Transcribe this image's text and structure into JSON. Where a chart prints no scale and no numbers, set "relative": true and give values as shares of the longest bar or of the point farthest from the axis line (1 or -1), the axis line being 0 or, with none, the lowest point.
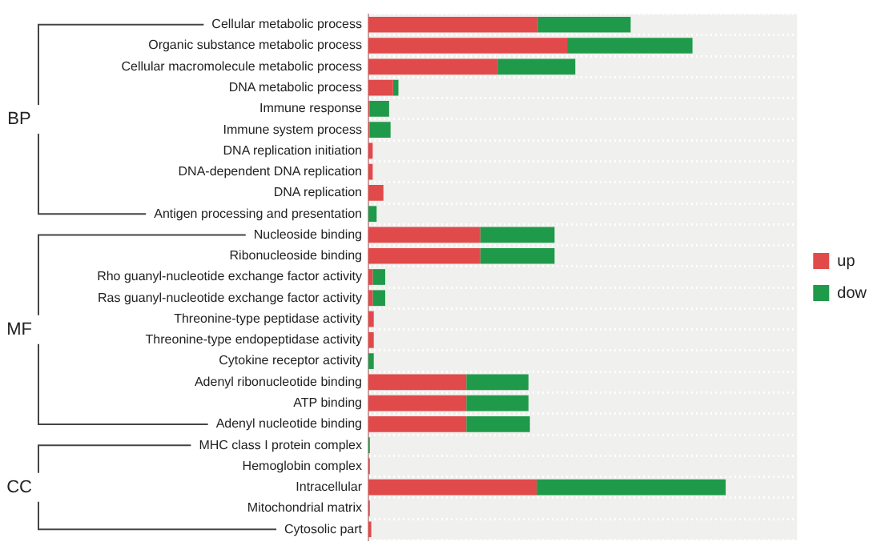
{
  "chart_data": {
    "type": "bar",
    "orientation": "horizontal",
    "stacked": true,
    "relative": true,
    "grid": "y",
    "legend": "right",
    "categories": [
      "Cellular metabolic process",
      "Organic substance metabolic process",
      "Cellular macromolecule metabolic process",
      "DNA metabolic process",
      "Immune response",
      "Immune system process",
      "DNA replication initiation",
      "DNA-dependent DNA replication",
      "DNA replication",
      "Antigen processing and presentation",
      "Nucleoside binding",
      "Ribonucleoside binding",
      "Rho guanyl-nucleotide exchange factor activity",
      "Ras guanyl-nucleotide exchange factor activity",
      "Threonine-type peptidase activity",
      "Threonine-type endopeptidase activity",
      "Cytokine receptor activity",
      "Adenyl ribonucleotide binding",
      "ATP binding",
      "Adenyl nucleotide binding",
      "MHC class I protein complex",
      "Hemoglobin complex",
      "Intracellular",
      "Mitochondrial matrix",
      "Cytosolic part"
    ],
    "series": [
      {
        "name": "up",
        "color": "#e04a4a",
        "values": [
          0.475,
          0.556,
          0.363,
          0.069,
          0.004,
          0.004,
          0.012,
          0.012,
          0.042,
          0,
          0.313,
          0.313,
          0.012,
          0.012,
          0.015,
          0.015,
          0,
          0.274,
          0.274,
          0.274,
          0,
          0.004,
          0.471,
          0.004,
          0.008
        ]
      },
      {
        "name": "dow",
        "color": "#1f9a4a",
        "values": [
          0.259,
          0.351,
          0.216,
          0.015,
          0.054,
          0.058,
          0,
          0,
          0,
          0.023,
          0.208,
          0.208,
          0.035,
          0.035,
          0,
          0,
          0.015,
          0.174,
          0.174,
          0.178,
          0.004,
          0,
          0.529,
          0,
          0
        ]
      }
    ],
    "annotations": [
      "BP",
      "MF",
      "CC"
    ]
  }
}
